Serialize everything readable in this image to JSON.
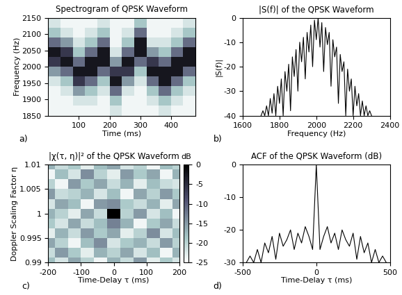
{
  "chart_data": [
    {
      "type": "heatmap",
      "title": "Spectrogram of QPSK Waveform",
      "x_label": "Time (ms)",
      "y_label": "Frequency (Hz)",
      "annotation": "a)",
      "x": [
        20,
        60,
        100,
        140,
        180,
        220,
        260,
        300,
        340,
        380,
        420,
        460
      ],
      "y": [
        1865,
        1895,
        1925,
        1955,
        1985,
        2015,
        2045,
        2075,
        2105,
        2135
      ],
      "cells": [
        [
          0.04,
          0.04,
          0.04,
          0.04,
          0.04,
          0.12,
          0.04,
          0.04,
          0.04,
          0.12,
          0.04,
          0.04
        ],
        [
          0.04,
          0.04,
          0.12,
          0.12,
          0.04,
          0.25,
          0.04,
          0.04,
          0.12,
          0.25,
          0.12,
          0.04
        ],
        [
          0.04,
          0.12,
          0.4,
          0.25,
          0.12,
          0.55,
          0.12,
          0.04,
          0.25,
          0.55,
          0.25,
          0.12
        ],
        [
          0.12,
          0.25,
          0.75,
          0.55,
          0.25,
          0.9,
          0.4,
          0.12,
          0.55,
          0.9,
          0.55,
          0.25
        ],
        [
          0.4,
          0.55,
          0.9,
          0.9,
          0.55,
          0.75,
          0.75,
          0.25,
          0.9,
          0.9,
          0.9,
          0.55
        ],
        [
          0.75,
          0.9,
          0.55,
          0.9,
          0.9,
          0.4,
          0.9,
          0.55,
          0.75,
          0.55,
          0.9,
          0.9
        ],
        [
          0.9,
          0.75,
          0.25,
          0.55,
          0.9,
          0.12,
          0.55,
          0.9,
          0.4,
          0.25,
          0.55,
          0.9
        ],
        [
          0.55,
          0.4,
          0.12,
          0.25,
          0.55,
          0.04,
          0.25,
          0.9,
          0.12,
          0.12,
          0.25,
          0.55
        ],
        [
          0.25,
          0.12,
          0.04,
          0.12,
          0.25,
          0.04,
          0.12,
          0.55,
          0.04,
          0.04,
          0.12,
          0.25
        ],
        [
          0.12,
          0.04,
          0.04,
          0.04,
          0.12,
          0.04,
          0.04,
          0.25,
          0.04,
          0.04,
          0.04,
          0.12
        ]
      ],
      "color_range": [
        0,
        1
      ],
      "xlim": [
        0,
        480
      ],
      "xticks": [
        100,
        200,
        300,
        400
      ],
      "ylim": [
        1850,
        2150
      ],
      "yticks": [
        1850,
        1900,
        1950,
        2000,
        2050,
        2100,
        2150
      ]
    },
    {
      "type": "line",
      "title": "|S(f)| of the QPSK Waveform",
      "x_label": "Frequency (Hz)",
      "y_label": "|S(f)|",
      "annotation": "b)",
      "x": [
        1700,
        1710,
        1720,
        1730,
        1740,
        1750,
        1760,
        1770,
        1780,
        1790,
        1800,
        1810,
        1820,
        1830,
        1840,
        1850,
        1860,
        1870,
        1880,
        1890,
        1900,
        1910,
        1920,
        1930,
        1940,
        1950,
        1960,
        1970,
        1980,
        1990,
        2000,
        2010,
        2020,
        2030,
        2040,
        2050,
        2060,
        2070,
        2080,
        2090,
        2100,
        2110,
        2120,
        2130,
        2140,
        2150,
        2160,
        2170,
        2180,
        2190,
        2200,
        2210,
        2220,
        2230,
        2240,
        2250,
        2260,
        2270,
        2280,
        2290,
        2300
      ],
      "series": [
        {
          "color": "#000000",
          "values": [
            -40,
            -38,
            -40,
            -36,
            -40,
            -33,
            -39,
            -31,
            -40,
            -28,
            -35,
            -25,
            -40,
            -22,
            -30,
            -19,
            -38,
            -16,
            -24,
            -13,
            -30,
            -10,
            -18,
            -8,
            -25,
            -6,
            -14,
            -3,
            -20,
            -1,
            -9,
            0,
            -12,
            -2,
            -22,
            -4,
            -11,
            -6,
            -28,
            -9,
            -16,
            -12,
            -35,
            -15,
            -22,
            -18,
            -40,
            -21,
            -30,
            -25,
            -40,
            -28,
            -36,
            -31,
            -40,
            -34,
            -40,
            -36,
            -40,
            -38,
            -40
          ]
        }
      ],
      "xlim": [
        1600,
        2400
      ],
      "xticks": [
        1600,
        1800,
        2000,
        2200,
        2400
      ],
      "ylim": [
        -40,
        0
      ],
      "yticks": [
        -40,
        -30,
        -20,
        -10,
        0
      ]
    },
    {
      "type": "heatmap",
      "title": "|χ(τ, η)|² of the QPSK Waveform",
      "x_label": "Time-Delay τ (ms)",
      "y_label": "Doppler Scaling Factor η",
      "annotation": "c)",
      "x": [
        -200,
        -160,
        -120,
        -80,
        -40,
        0,
        40,
        80,
        120,
        160,
        200
      ],
      "y": [
        0.99,
        0.992,
        0.994,
        0.996,
        0.998,
        1.0,
        1.002,
        1.004,
        1.006,
        1.008,
        1.01
      ],
      "cells": [
        [
          -18,
          -22,
          -16,
          -20,
          -24,
          -17,
          -21,
          -15,
          -23,
          -19,
          -22
        ],
        [
          -21,
          -15,
          -19,
          -23,
          -17,
          -20,
          -16,
          -22,
          -18,
          -24,
          -17
        ],
        [
          -16,
          -20,
          -24,
          -18,
          -14,
          -22,
          -19,
          -17,
          -21,
          -15,
          -20
        ],
        [
          -23,
          -17,
          -21,
          -15,
          -19,
          -16,
          -23,
          -20,
          -14,
          -22,
          -18
        ],
        [
          -19,
          -22,
          -16,
          -21,
          -18,
          -13,
          -17,
          -24,
          -19,
          -16,
          -21
        ],
        [
          -17,
          -20,
          -23,
          -16,
          -21,
          0,
          -20,
          -15,
          -22,
          -18,
          -24
        ],
        [
          -22,
          -16,
          -18,
          -24,
          -15,
          -14,
          -19,
          -21,
          -17,
          -23,
          -16
        ],
        [
          -15,
          -21,
          -20,
          -17,
          -22,
          -18,
          -24,
          -16,
          -20,
          -15,
          -19
        ],
        [
          -20,
          -24,
          -15,
          -19,
          -16,
          -21,
          -17,
          -23,
          -18,
          -21,
          -22
        ],
        [
          -24,
          -18,
          -22,
          -14,
          -20,
          -23,
          -15,
          -19,
          -16,
          -24,
          -17
        ],
        [
          -17,
          -21,
          -19,
          -23,
          -18,
          -16,
          -22,
          -20,
          -24,
          -18,
          -20
        ]
      ],
      "color_range": [
        -25,
        0
      ],
      "colorbar_ticks": [
        -25,
        -20,
        -15,
        -10,
        -5,
        0
      ],
      "colorbar_label": "dB",
      "xlim": [
        -200,
        200
      ],
      "xticks": [
        -200,
        -100,
        0,
        100,
        200
      ],
      "ylim": [
        0.99,
        1.01
      ],
      "yticks": [
        0.99,
        0.995,
        1,
        1.005,
        1.01
      ]
    },
    {
      "type": "line",
      "title": "ACF of the QPSK Waveform (dB)",
      "x_label": "Time-Delay τ (ms)",
      "annotation": "d)",
      "x": [
        -475,
        -450,
        -425,
        -400,
        -375,
        -350,
        -325,
        -300,
        -275,
        -250,
        -225,
        -200,
        -175,
        -150,
        -125,
        -100,
        -75,
        -50,
        -25,
        0,
        25,
        50,
        75,
        100,
        125,
        150,
        175,
        200,
        225,
        250,
        275,
        300,
        325,
        350,
        375,
        400,
        425,
        450,
        475
      ],
      "series": [
        {
          "color": "#000000",
          "values": [
            -30,
            -28,
            -30,
            -26,
            -30,
            -24,
            -27,
            -22,
            -29,
            -21,
            -25,
            -23,
            -20,
            -26,
            -21,
            -24,
            -19,
            -22,
            -26,
            0,
            -26,
            -22,
            -19,
            -24,
            -21,
            -26,
            -20,
            -23,
            -25,
            -21,
            -29,
            -22,
            -27,
            -24,
            -30,
            -26,
            -30,
            -28,
            -30
          ]
        }
      ],
      "xlim": [
        -500,
        500
      ],
      "xticks": [
        -500,
        0,
        500
      ],
      "ylim": [
        -30,
        0
      ],
      "yticks": [
        -30,
        -20,
        -10,
        0
      ]
    }
  ]
}
